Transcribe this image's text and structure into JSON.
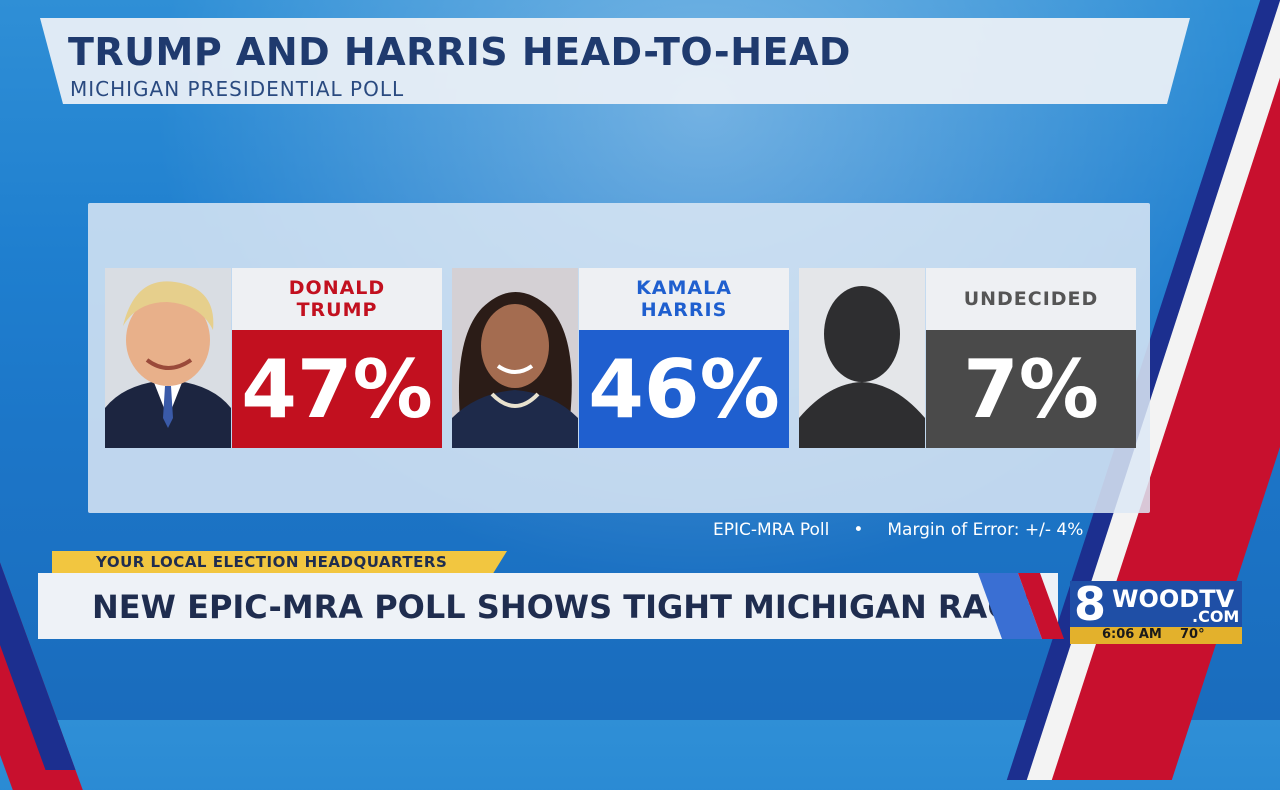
{
  "header": {
    "title": "TRUMP AND HARRIS HEAD-TO-HEAD",
    "subtitle": "MICHIGAN PRESIDENTIAL POLL"
  },
  "candidates": [
    {
      "name": "DONALD TRUMP",
      "percent": "47%",
      "color": "#c2101f",
      "name_color": "#c2101f"
    },
    {
      "name": "KAMALA HARRIS",
      "percent": "46%",
      "color": "#1f5fcf",
      "name_color": "#1f5fcf"
    },
    {
      "name": "UNDECIDED",
      "percent": "7%",
      "color": "#4a4a4a",
      "name_color": "#555555"
    }
  ],
  "footnote": {
    "source": "EPIC-MRA Poll",
    "bullet": "•",
    "margin": "Margin of Error: +/- 4%"
  },
  "ticker": {
    "tag": "YOUR LOCAL ELECTION HEADQUARTERS",
    "headline": "NEW EPIC-MRA POLL SHOWS TIGHT MICHIGAN RACE"
  },
  "station": {
    "channel": "8",
    "name": "WOODTV",
    "suffix": ".COM",
    "time": "6:06 AM",
    "temperature": "70°"
  }
}
